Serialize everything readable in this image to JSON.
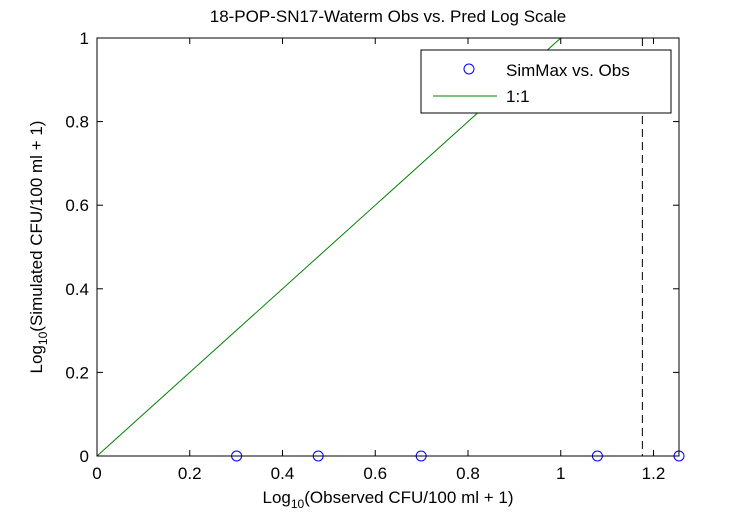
{
  "chart_data": {
    "type": "scatter",
    "title": "18-POP-SN17-Waterm Obs vs. Pred Log Scale",
    "xlabel": {
      "prefix": "Log",
      "sub": "10",
      "rest": "(Observed CFU/100 ml + 1)"
    },
    "ylabel": {
      "prefix": "Log",
      "sub": "10",
      "rest": "(Simulated CFU/100 ml + 1)"
    },
    "xlim": [
      0,
      1.255
    ],
    "ylim": [
      0,
      1
    ],
    "xticks": [
      0,
      0.2,
      0.4,
      0.6,
      0.8,
      1,
      1.2
    ],
    "xtick_labels": [
      "0",
      "0.2",
      "0.4",
      "0.6",
      "0.8",
      "1",
      "1.2"
    ],
    "yticks": [
      0,
      0.2,
      0.4,
      0.6,
      0.8,
      1
    ],
    "ytick_labels": [
      "0",
      "0.2",
      "0.4",
      "0.6",
      "0.8",
      "1"
    ],
    "grid": false,
    "legend_position": "top-right",
    "series": [
      {
        "name": "SimMax vs. Obs",
        "kind": "marker-circle",
        "color": "#0000ff",
        "x": [
          0.301,
          0.477,
          0.699,
          1.079,
          1.255
        ],
        "y": [
          0,
          0,
          0,
          0,
          0
        ]
      },
      {
        "name": "1:1",
        "kind": "line",
        "color": "#008000",
        "x": [
          0,
          1
        ],
        "y": [
          0,
          1
        ]
      }
    ],
    "vertical_dashed_line": {
      "x": 1.176,
      "color": "#000000"
    }
  }
}
